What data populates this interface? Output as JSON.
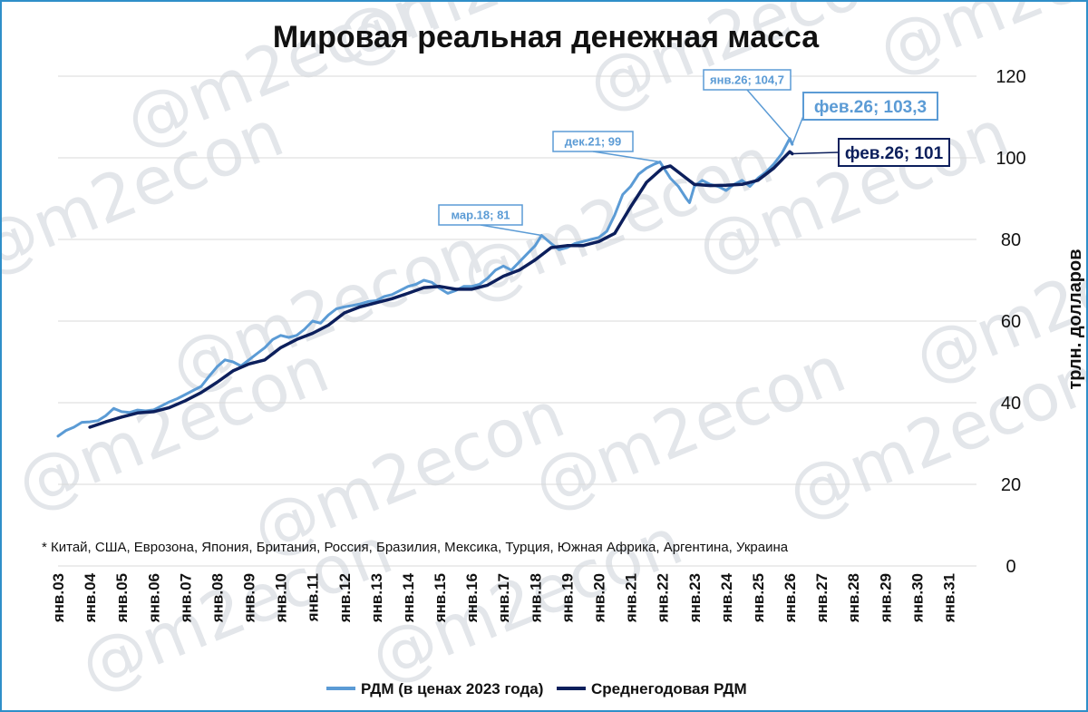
{
  "colors": {
    "frame": "#2f8fc9",
    "series_light": "#5b9bd5",
    "series_dark": "#0c1f5c",
    "grid": "#d9d9d9",
    "watermark": "#e3e6ea"
  },
  "watermark_text": "@m2econ",
  "footnote": "* Китай, США, Еврозона, Япония, Британия, Россия, Бразилия, Мексика, Турция, Южная Африка, Аргентина, Украина",
  "chart_data": {
    "type": "line",
    "title": "Мировая реальная денежная масса",
    "ylabel": "трлн. долларов",
    "xlabel": "",
    "ylim": [
      0,
      120
    ],
    "yticks": [
      0,
      20,
      40,
      60,
      80,
      100,
      120
    ],
    "y_axis_position": "right",
    "grid": true,
    "legend_position": "bottom",
    "xlim": [
      2003.0,
      2031.5
    ],
    "xtick_labels": [
      "янв.03",
      "янв.04",
      "янв.05",
      "янв.06",
      "янв.07",
      "янв.08",
      "янв.09",
      "янв.10",
      "янв.11",
      "янв.12",
      "янв.13",
      "янв.14",
      "янв.15",
      "янв.16",
      "янв.17",
      "янв.18",
      "янв.19",
      "янв.20",
      "янв.21",
      "янв.22",
      "янв.23",
      "янв.24",
      "янв.25",
      "янв.26",
      "янв.27",
      "янв.28",
      "янв.29",
      "янв.30",
      "янв.31"
    ],
    "series": [
      {
        "name": "РДМ (в ценах 2023 года)",
        "color": "#5b9bd5",
        "points": [
          [
            2003.0,
            31.8
          ],
          [
            2003.25,
            33.2
          ],
          [
            2003.5,
            34.0
          ],
          [
            2003.75,
            35.2
          ],
          [
            2004.0,
            35.3
          ],
          [
            2004.25,
            35.6
          ],
          [
            2004.5,
            36.8
          ],
          [
            2004.75,
            38.6
          ],
          [
            2005.0,
            37.8
          ],
          [
            2005.25,
            37.6
          ],
          [
            2005.5,
            38.2
          ],
          [
            2005.75,
            38.0
          ],
          [
            2006.0,
            38.2
          ],
          [
            2006.25,
            39.2
          ],
          [
            2006.5,
            40.2
          ],
          [
            2006.75,
            41.0
          ],
          [
            2007.0,
            42.0
          ],
          [
            2007.25,
            43.0
          ],
          [
            2007.5,
            44.0
          ],
          [
            2007.75,
            46.5
          ],
          [
            2008.0,
            48.8
          ],
          [
            2008.25,
            50.5
          ],
          [
            2008.5,
            50.0
          ],
          [
            2008.75,
            49.0
          ],
          [
            2009.0,
            50.5
          ],
          [
            2009.25,
            52.0
          ],
          [
            2009.5,
            53.5
          ],
          [
            2009.75,
            55.5
          ],
          [
            2010.0,
            56.5
          ],
          [
            2010.25,
            56.0
          ],
          [
            2010.5,
            56.5
          ],
          [
            2010.75,
            58.0
          ],
          [
            2011.0,
            60.0
          ],
          [
            2011.25,
            59.5
          ],
          [
            2011.5,
            61.5
          ],
          [
            2011.75,
            63.0
          ],
          [
            2012.0,
            63.5
          ],
          [
            2012.25,
            63.8
          ],
          [
            2012.5,
            64.2
          ],
          [
            2012.75,
            64.8
          ],
          [
            2013.0,
            65.0
          ],
          [
            2013.25,
            66.0
          ],
          [
            2013.5,
            66.5
          ],
          [
            2013.75,
            67.5
          ],
          [
            2014.0,
            68.5
          ],
          [
            2014.25,
            69.0
          ],
          [
            2014.5,
            70.0
          ],
          [
            2014.75,
            69.5
          ],
          [
            2015.0,
            68.0
          ],
          [
            2015.25,
            66.8
          ],
          [
            2015.5,
            67.5
          ],
          [
            2015.75,
            68.5
          ],
          [
            2016.0,
            68.5
          ],
          [
            2016.25,
            69.0
          ],
          [
            2016.5,
            70.5
          ],
          [
            2016.75,
            72.5
          ],
          [
            2017.0,
            73.5
          ],
          [
            2017.25,
            72.5
          ],
          [
            2017.5,
            74.5
          ],
          [
            2017.75,
            76.5
          ],
          [
            2018.0,
            78.5
          ],
          [
            2018.2,
            81.0
          ],
          [
            2018.5,
            79.0
          ],
          [
            2018.75,
            77.5
          ],
          [
            2019.0,
            78.0
          ],
          [
            2019.25,
            79.0
          ],
          [
            2019.5,
            79.5
          ],
          [
            2019.75,
            80.0
          ],
          [
            2020.0,
            80.5
          ],
          [
            2020.25,
            82.0
          ],
          [
            2020.5,
            86.0
          ],
          [
            2020.75,
            91.0
          ],
          [
            2021.0,
            93.0
          ],
          [
            2021.25,
            96.0
          ],
          [
            2021.5,
            97.5
          ],
          [
            2021.75,
            98.5
          ],
          [
            2021.92,
            99.0
          ],
          [
            2022.0,
            98.0
          ],
          [
            2022.25,
            95.0
          ],
          [
            2022.5,
            93.0
          ],
          [
            2022.75,
            90.0
          ],
          [
            2022.85,
            89.0
          ],
          [
            2023.0,
            93.0
          ],
          [
            2023.25,
            94.5
          ],
          [
            2023.5,
            93.5
          ],
          [
            2023.75,
            93.0
          ],
          [
            2024.0,
            92.0
          ],
          [
            2024.25,
            93.5
          ],
          [
            2024.5,
            94.5
          ],
          [
            2024.75,
            93.0
          ],
          [
            2025.0,
            95.0
          ],
          [
            2025.25,
            96.5
          ],
          [
            2025.5,
            98.5
          ],
          [
            2025.75,
            101.0
          ],
          [
            2026.0,
            104.7
          ],
          [
            2026.08,
            103.3
          ]
        ]
      },
      {
        "name": "Среднегодовая РДМ",
        "color": "#0c1f5c",
        "points": [
          [
            2004.0,
            34.0
          ],
          [
            2004.5,
            35.3
          ],
          [
            2005.0,
            36.5
          ],
          [
            2005.5,
            37.5
          ],
          [
            2006.0,
            37.8
          ],
          [
            2006.5,
            38.8
          ],
          [
            2007.0,
            40.5
          ],
          [
            2007.5,
            42.5
          ],
          [
            2008.0,
            45.0
          ],
          [
            2008.5,
            47.8
          ],
          [
            2009.0,
            49.5
          ],
          [
            2009.5,
            50.5
          ],
          [
            2010.0,
            53.5
          ],
          [
            2010.5,
            55.5
          ],
          [
            2011.0,
            57.0
          ],
          [
            2011.5,
            59.0
          ],
          [
            2012.0,
            62.0
          ],
          [
            2012.5,
            63.5
          ],
          [
            2013.0,
            64.5
          ],
          [
            2013.5,
            65.5
          ],
          [
            2014.0,
            66.8
          ],
          [
            2014.5,
            68.2
          ],
          [
            2015.0,
            68.5
          ],
          [
            2015.5,
            67.8
          ],
          [
            2016.0,
            67.8
          ],
          [
            2016.5,
            68.8
          ],
          [
            2017.0,
            71.0
          ],
          [
            2017.5,
            72.5
          ],
          [
            2018.0,
            75.0
          ],
          [
            2018.5,
            78.0
          ],
          [
            2019.0,
            78.5
          ],
          [
            2019.5,
            78.5
          ],
          [
            2020.0,
            79.5
          ],
          [
            2020.5,
            81.5
          ],
          [
            2021.0,
            88.0
          ],
          [
            2021.5,
            94.0
          ],
          [
            2022.0,
            97.5
          ],
          [
            2022.25,
            98.0
          ],
          [
            2022.5,
            96.5
          ],
          [
            2023.0,
            93.5
          ],
          [
            2023.5,
            93.2
          ],
          [
            2024.0,
            93.3
          ],
          [
            2024.5,
            93.5
          ],
          [
            2025.0,
            94.5
          ],
          [
            2025.5,
            97.5
          ],
          [
            2026.0,
            101.5
          ],
          [
            2026.08,
            101.0
          ]
        ]
      }
    ],
    "annotations": [
      {
        "text": "мар.18; 81",
        "series": 0,
        "x": 2018.2,
        "y": 81.0,
        "size": "small"
      },
      {
        "text": "дек.21; 99",
        "series": 0,
        "x": 2021.92,
        "y": 99.0,
        "size": "small"
      },
      {
        "text": "янв.26; 104,7",
        "series": 0,
        "x": 2026.0,
        "y": 104.7,
        "size": "small"
      },
      {
        "text": "фев.26; 103,3",
        "series": 0,
        "x": 2026.08,
        "y": 103.3,
        "size": "large"
      },
      {
        "text": "фев.26; 101",
        "series": 1,
        "x": 2026.08,
        "y": 101.0,
        "size": "large"
      }
    ]
  }
}
